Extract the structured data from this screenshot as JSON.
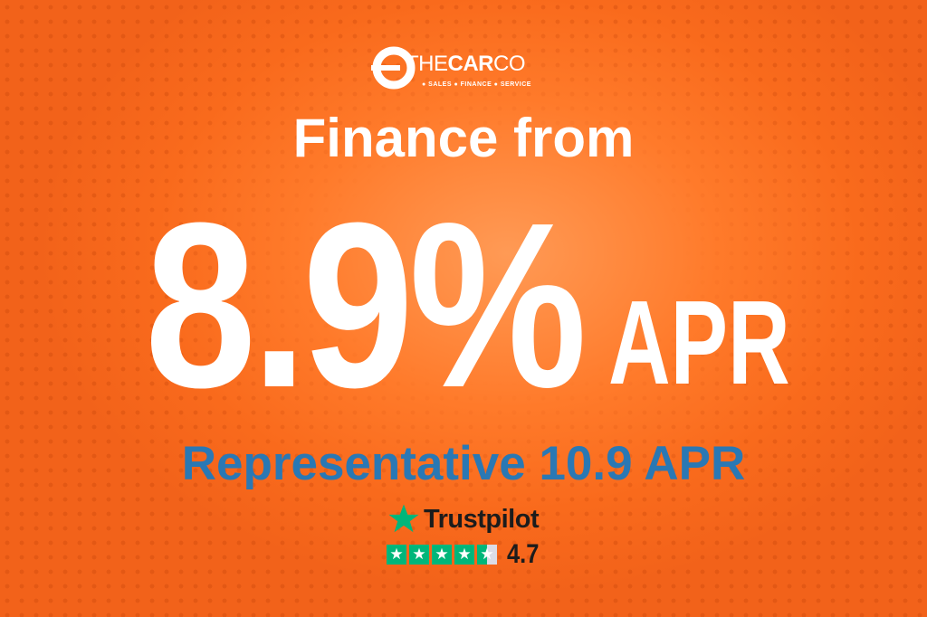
{
  "brand": {
    "name_light": "THE",
    "name_bold": "CAR",
    "name_end": "CO",
    "tagline": "● SALES ● FINANCE ● SERVICE"
  },
  "headline": "Finance from",
  "rate": "8.9%",
  "rate_suffix": "APR",
  "representative": "Representative 10.9 APR",
  "trustpilot": {
    "label": "Trustpilot",
    "score": "4.7",
    "rating": 4.7,
    "max": 5,
    "star_color": "#00b67a"
  },
  "colors": {
    "background": "#f96a1c",
    "accent_blue": "#2a78b4"
  }
}
